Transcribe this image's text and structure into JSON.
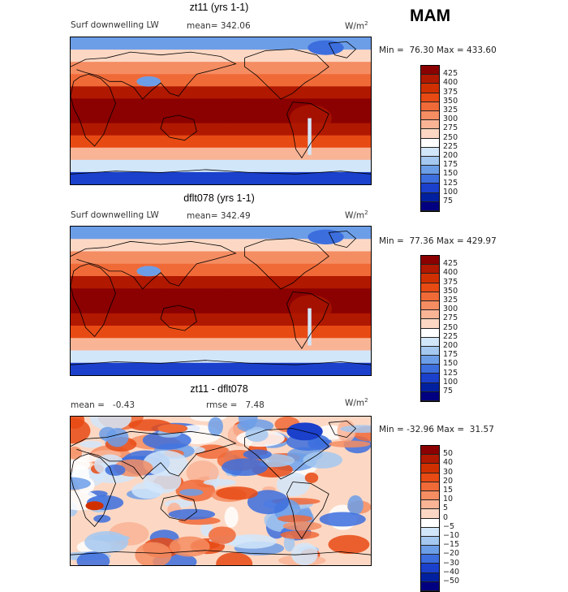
{
  "season": "MAM",
  "units_base": "W/m",
  "units_sup": "2",
  "panels": [
    {
      "title": "zt11 (yrs 1-1)",
      "variable": "Surf downwelling LW",
      "stat_line": "mean= 342.06",
      "min_max": "Min =  76.30 Max = 433.60"
    },
    {
      "title": "dflt078 (yrs 1-1)",
      "variable": "Surf downwelling LW",
      "stat_line": "mean= 342.49",
      "min_max": "Min =  77.36 Max = 429.97"
    },
    {
      "title": "zt11 - dflt078",
      "mean_line": "mean =   -0.43",
      "rmse_line": "rmse =   7.48",
      "min_max": "Min = -32.96 Max =  31.57"
    }
  ],
  "chart_data": [
    {
      "type": "heatmap",
      "title": "zt11 (yrs 1-1)",
      "variable": "Surf downwelling LW",
      "units": "W/m2",
      "mean": 342.06,
      "min": 76.3,
      "max": 433.6,
      "colorbar_levels": [
        425,
        400,
        375,
        350,
        325,
        300,
        275,
        250,
        225,
        200,
        175,
        150,
        125,
        100,
        75
      ],
      "colorbar_colors": [
        "#8b0000",
        "#b01800",
        "#d03000",
        "#e84a14",
        "#f06a38",
        "#f58d62",
        "#f9b496",
        "#fcd8c4",
        "#ffffff",
        "#d2e6fa",
        "#a4c8f0",
        "#6c9ee8",
        "#3c6ede",
        "#1a40cc",
        "#0020a0",
        "#000080"
      ],
      "zonal_band_values": [
        150,
        240,
        300,
        330,
        390,
        420,
        415,
        390,
        340,
        280,
        200,
        110
      ]
    },
    {
      "type": "heatmap",
      "title": "dflt078 (yrs 1-1)",
      "variable": "Surf downwelling LW",
      "units": "W/m2",
      "mean": 342.49,
      "min": 77.36,
      "max": 429.97,
      "colorbar_levels": [
        425,
        400,
        375,
        350,
        325,
        300,
        275,
        250,
        225,
        200,
        175,
        150,
        125,
        100,
        75
      ],
      "colorbar_colors": [
        "#8b0000",
        "#b01800",
        "#d03000",
        "#e84a14",
        "#f06a38",
        "#f58d62",
        "#f9b496",
        "#fcd8c4",
        "#ffffff",
        "#d2e6fa",
        "#a4c8f0",
        "#6c9ee8",
        "#3c6ede",
        "#1a40cc",
        "#0020a0",
        "#000080"
      ],
      "zonal_band_values": [
        150,
        240,
        300,
        330,
        390,
        420,
        415,
        390,
        340,
        280,
        200,
        110
      ]
    },
    {
      "type": "heatmap",
      "title": "zt11 - dflt078",
      "units": "W/m2",
      "mean": -0.43,
      "rmse": 7.48,
      "min": -32.96,
      "max": 31.57,
      "colorbar_levels": [
        50,
        40,
        30,
        20,
        15,
        10,
        5,
        0,
        -5,
        -10,
        -15,
        -20,
        -30,
        -40,
        -50
      ],
      "colorbar_colors": [
        "#8b0000",
        "#b01800",
        "#d03000",
        "#e84a14",
        "#f06a38",
        "#f58d62",
        "#f9b496",
        "#fcd8c4",
        "#ffffff",
        "#d2e6fa",
        "#a4c8f0",
        "#6c9ee8",
        "#3c6ede",
        "#1a40cc",
        "#0020a0",
        "#000080"
      ]
    }
  ]
}
